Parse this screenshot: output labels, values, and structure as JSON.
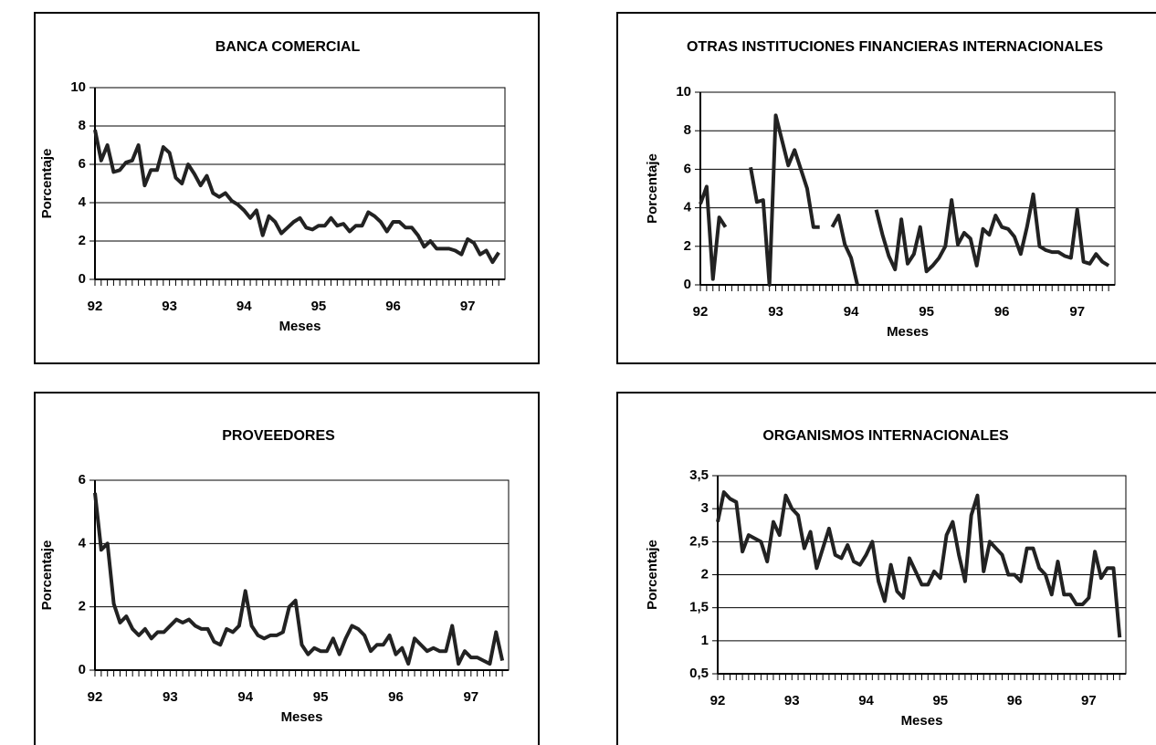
{
  "chart_data": [
    {
      "type": "line",
      "title": "BANCA COMERCIAL",
      "x_label": "Meses",
      "y_label": "Porcentaje",
      "categories": [
        "92",
        null,
        null,
        null,
        null,
        null,
        null,
        null,
        null,
        null,
        null,
        null,
        "93",
        null,
        null,
        null,
        null,
        null,
        null,
        null,
        null,
        null,
        null,
        null,
        "94",
        null,
        null,
        null,
        null,
        null,
        null,
        null,
        null,
        null,
        null,
        null,
        "95",
        null,
        null,
        null,
        null,
        null,
        null,
        null,
        null,
        null,
        null,
        null,
        "96",
        null,
        null,
        null,
        null,
        null,
        null,
        null,
        null,
        null,
        null,
        null,
        "97",
        null,
        null,
        null,
        null,
        null
      ],
      "series": [
        {
          "name": "Banca Comercial",
          "color": "#222222",
          "values": [
            7.8,
            6.2,
            7.0,
            5.6,
            5.7,
            6.1,
            6.2,
            7.0,
            4.9,
            5.7,
            5.7,
            6.9,
            6.6,
            5.3,
            5.0,
            6.0,
            5.5,
            4.9,
            5.4,
            4.5,
            4.3,
            4.5,
            4.1,
            3.9,
            3.6,
            3.2,
            3.6,
            2.3,
            3.3,
            3.0,
            2.4,
            2.7,
            3.0,
            3.2,
            2.7,
            2.6,
            2.8,
            2.8,
            3.2,
            2.8,
            2.9,
            2.5,
            2.8,
            2.8,
            3.5,
            3.3,
            3.0,
            2.5,
            3.0,
            3.0,
            2.7,
            2.7,
            2.3,
            1.7,
            2.0,
            1.6,
            1.6,
            1.6,
            1.5,
            1.3,
            2.1,
            1.9,
            1.3,
            1.5,
            0.9,
            1.4
          ]
        }
      ],
      "ylim": [
        0,
        10
      ],
      "yticks": [
        0,
        2,
        4,
        6,
        8,
        10
      ],
      "grid": true
    },
    {
      "type": "line",
      "title": "OTRAS INSTITUCIONES FINANCIERAS INTERNACIONALES",
      "x_label": "Meses",
      "y_label": "Porcentaje",
      "categories": [
        "92",
        null,
        null,
        null,
        null,
        null,
        null,
        null,
        null,
        null,
        null,
        null,
        "93",
        null,
        null,
        null,
        null,
        null,
        null,
        null,
        null,
        null,
        null,
        null,
        "94",
        null,
        null,
        null,
        null,
        null,
        null,
        null,
        null,
        null,
        null,
        null,
        "95",
        null,
        null,
        null,
        null,
        null,
        null,
        null,
        null,
        null,
        null,
        null,
        "96",
        null,
        null,
        null,
        null,
        null,
        null,
        null,
        null,
        null,
        null,
        null,
        "97",
        null,
        null,
        null,
        null,
        null
      ],
      "series": [
        {
          "name": "Otras instituciones",
          "color": "#222222",
          "values": [
            4.2,
            5.1,
            0.3,
            3.5,
            3.0,
            null,
            null,
            null,
            6.1,
            4.3,
            4.4,
            0,
            8.8,
            7.5,
            6.2,
            7.0,
            6.0,
            5.0,
            3.0,
            3.0,
            null,
            3.0,
            3.6,
            2.1,
            1.4,
            0,
            null,
            null,
            3.9,
            2.6,
            1.5,
            0.8,
            3.4,
            1.1,
            1.6,
            3.0,
            0.7,
            1.0,
            1.4,
            2.0,
            4.4,
            2.1,
            2.7,
            2.4,
            1.0,
            2.9,
            2.6,
            3.6,
            3.0,
            2.9,
            2.5,
            1.6,
            3.0,
            4.7,
            2.0,
            1.8,
            1.7,
            1.7,
            1.5,
            1.4,
            3.9,
            1.2,
            1.1,
            1.6,
            1.2,
            1.0
          ]
        }
      ],
      "ylim": [
        0,
        10
      ],
      "yticks": [
        0,
        2,
        4,
        6,
        8,
        10
      ],
      "grid": true
    },
    {
      "type": "line",
      "title": "PROVEEDORES",
      "x_label": "Meses",
      "y_label": "Porcentaje",
      "categories": [
        "92",
        null,
        null,
        null,
        null,
        null,
        null,
        null,
        null,
        null,
        null,
        null,
        "93",
        null,
        null,
        null,
        null,
        null,
        null,
        null,
        null,
        null,
        null,
        null,
        "94",
        null,
        null,
        null,
        null,
        null,
        null,
        null,
        null,
        null,
        null,
        null,
        "95",
        null,
        null,
        null,
        null,
        null,
        null,
        null,
        null,
        null,
        null,
        null,
        "96",
        null,
        null,
        null,
        null,
        null,
        null,
        null,
        null,
        null,
        null,
        null,
        "97",
        null,
        null,
        null,
        null,
        null
      ],
      "series": [
        {
          "name": "Proveedores",
          "color": "#222222",
          "values": [
            5.6,
            3.8,
            4.0,
            2.1,
            1.5,
            1.7,
            1.3,
            1.1,
            1.3,
            1.0,
            1.2,
            1.2,
            1.4,
            1.6,
            1.5,
            1.6,
            1.4,
            1.3,
            1.3,
            0.9,
            0.8,
            1.3,
            1.2,
            1.4,
            2.5,
            1.4,
            1.1,
            1.0,
            1.1,
            1.1,
            1.2,
            2.0,
            2.2,
            0.8,
            0.5,
            0.7,
            0.6,
            0.6,
            1.0,
            0.5,
            1.0,
            1.4,
            1.3,
            1.1,
            0.6,
            0.8,
            0.8,
            1.1,
            0.5,
            0.7,
            0.2,
            1.0,
            0.8,
            0.6,
            0.7,
            0.6,
            0.6,
            1.4,
            0.2,
            0.6,
            0.4,
            0.4,
            0.3,
            0.2,
            1.2,
            0.3
          ]
        }
      ],
      "ylim": [
        0,
        6
      ],
      "yticks": [
        0,
        2,
        4,
        6
      ],
      "grid": true
    },
    {
      "type": "line",
      "title": "ORGANISMOS INTERNACIONALES",
      "x_label": "Meses",
      "y_label": "Porcentaje",
      "categories": [
        "92",
        null,
        null,
        null,
        null,
        null,
        null,
        null,
        null,
        null,
        null,
        null,
        "93",
        null,
        null,
        null,
        null,
        null,
        null,
        null,
        null,
        null,
        null,
        null,
        "94",
        null,
        null,
        null,
        null,
        null,
        null,
        null,
        null,
        null,
        null,
        null,
        "95",
        null,
        null,
        null,
        null,
        null,
        null,
        null,
        null,
        null,
        null,
        null,
        "96",
        null,
        null,
        null,
        null,
        null,
        null,
        null,
        null,
        null,
        null,
        null,
        "97",
        null,
        null,
        null,
        null,
        null
      ],
      "series": [
        {
          "name": "Organismos internacionales",
          "color": "#222222",
          "values": [
            2.8,
            3.25,
            3.15,
            3.1,
            2.35,
            2.6,
            2.55,
            2.5,
            2.2,
            2.8,
            2.6,
            3.2,
            3.0,
            2.9,
            2.4,
            2.65,
            2.1,
            2.4,
            2.7,
            2.3,
            2.25,
            2.45,
            2.2,
            2.15,
            2.3,
            2.5,
            1.9,
            1.6,
            2.15,
            1.75,
            1.65,
            2.25,
            2.05,
            1.85,
            1.85,
            2.05,
            1.95,
            2.6,
            2.8,
            2.3,
            1.9,
            2.9,
            3.2,
            2.05,
            2.5,
            2.4,
            2.3,
            2.0,
            2.0,
            1.9,
            2.4,
            2.4,
            2.1,
            2.0,
            1.7,
            2.2,
            1.7,
            1.7,
            1.55,
            1.55,
            1.65,
            2.35,
            1.95,
            2.1,
            2.1,
            1.05
          ]
        }
      ],
      "ylim": [
        0.5,
        3.5
      ],
      "yticks": [
        {
          "value": 0.5,
          "label": "0,5"
        },
        1,
        {
          "value": 1.5,
          "label": "1,5"
        },
        2,
        {
          "value": 2.5,
          "label": "2,5"
        },
        3,
        {
          "value": 3.5,
          "label": "3,5"
        }
      ],
      "grid": true
    }
  ]
}
